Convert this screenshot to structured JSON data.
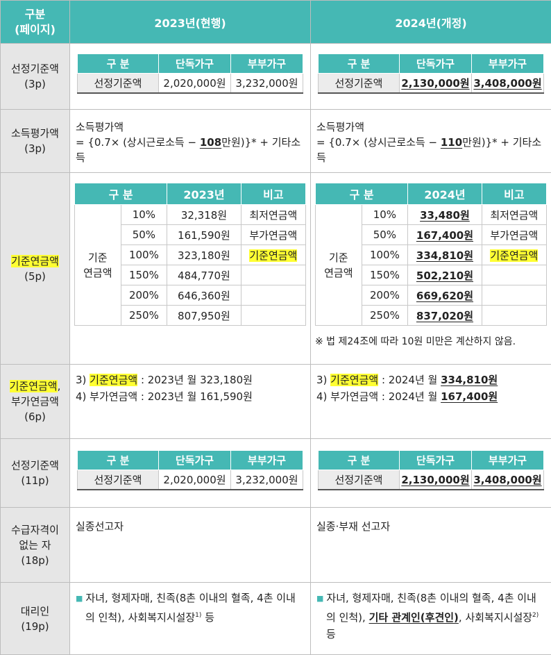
{
  "header": {
    "col1": "구분\n(페이지)",
    "col2": "2023년(현행)",
    "col3": "2024년(개정)"
  },
  "rows": {
    "r1": {
      "label": "선정기준액\n(3p)",
      "table_headers": [
        "구 분",
        "단독가구",
        "부부가구"
      ],
      "row_label": "선정기준액",
      "old": [
        "2,020,000원",
        "3,232,000원"
      ],
      "new": [
        "2,130,000원",
        "3,408,000원"
      ]
    },
    "r2": {
      "label": "소득평가액\n(3p)",
      "line1": "소득평가액",
      "old_pre": "= {0.7× (상시근로소득 − ",
      "old_num": "108",
      "post": "만원)}* + 기타소득",
      "new_pre": "= {0.7× (상시근로소득 − ",
      "new_num": "110"
    },
    "r3": {
      "label_hl": "기준연금액",
      "label_p": "(5p)",
      "headers_old": [
        "구  분",
        "2023년",
        "비고"
      ],
      "headers_new": [
        "구  분",
        "2024년",
        "비고"
      ],
      "group": "기준\n연금액",
      "pcts": [
        "10%",
        "50%",
        "100%",
        "150%",
        "200%",
        "250%"
      ],
      "old_vals": [
        "32,318원",
        "161,590원",
        "323,180원",
        "484,770원",
        "646,360원",
        "807,950원"
      ],
      "new_vals": [
        "33,480원",
        "167,400원",
        "334,810원",
        "502,210원",
        "669,620원",
        "837,020원"
      ],
      "notes": [
        "최저연금액",
        "부가연금액",
        "기준연금액",
        "",
        "",
        ""
      ],
      "footnote": "※ 법 제24조에 따라 10원 미만은 계산하지 않음."
    },
    "r4": {
      "label_hl": "기준연금액",
      "label_rest": ",\n부가연금액\n(6p)",
      "l1_pre": "3) ",
      "l1_hl": "기준연금액",
      "l1_old": " : 2023년 월 323,180원",
      "l2_old": "4) 부가연금액 : 2023년 월 161,590원",
      "l1_new_mid": " : 2024년 월 ",
      "l1_new_val": "334,810원",
      "l2_new_pre": "4) 부가연금액 : 2024년 월 ",
      "l2_new_val": "167,400원"
    },
    "r5": {
      "label": "선정기준액\n(11p)"
    },
    "r6": {
      "label": "수급자격이\n없는 자\n(18p)",
      "old": "실종선고자",
      "new": "실종·부재 선고자"
    },
    "r7": {
      "label": "대리인\n(19p)",
      "old_text": "자녀, 형제자매, 친족(8촌 이내의 혈족, 4촌 이내의 인척), 사회복지시설장",
      "old_sup": "1)",
      "old_end": " 등",
      "new_pre": "자녀, 형제자매, 친족(8촌 이내의 혈족, 4촌 이내의 인척), ",
      "new_bold": "기타 관계인(후견인)",
      "new_mid": ", 사회복지시설장",
      "new_sup": "2)",
      "new_end": " 등"
    }
  },
  "colors": {
    "teal": "#45b8b4",
    "label_bg": "#e6e6e6",
    "highlight": "#ffff33"
  }
}
